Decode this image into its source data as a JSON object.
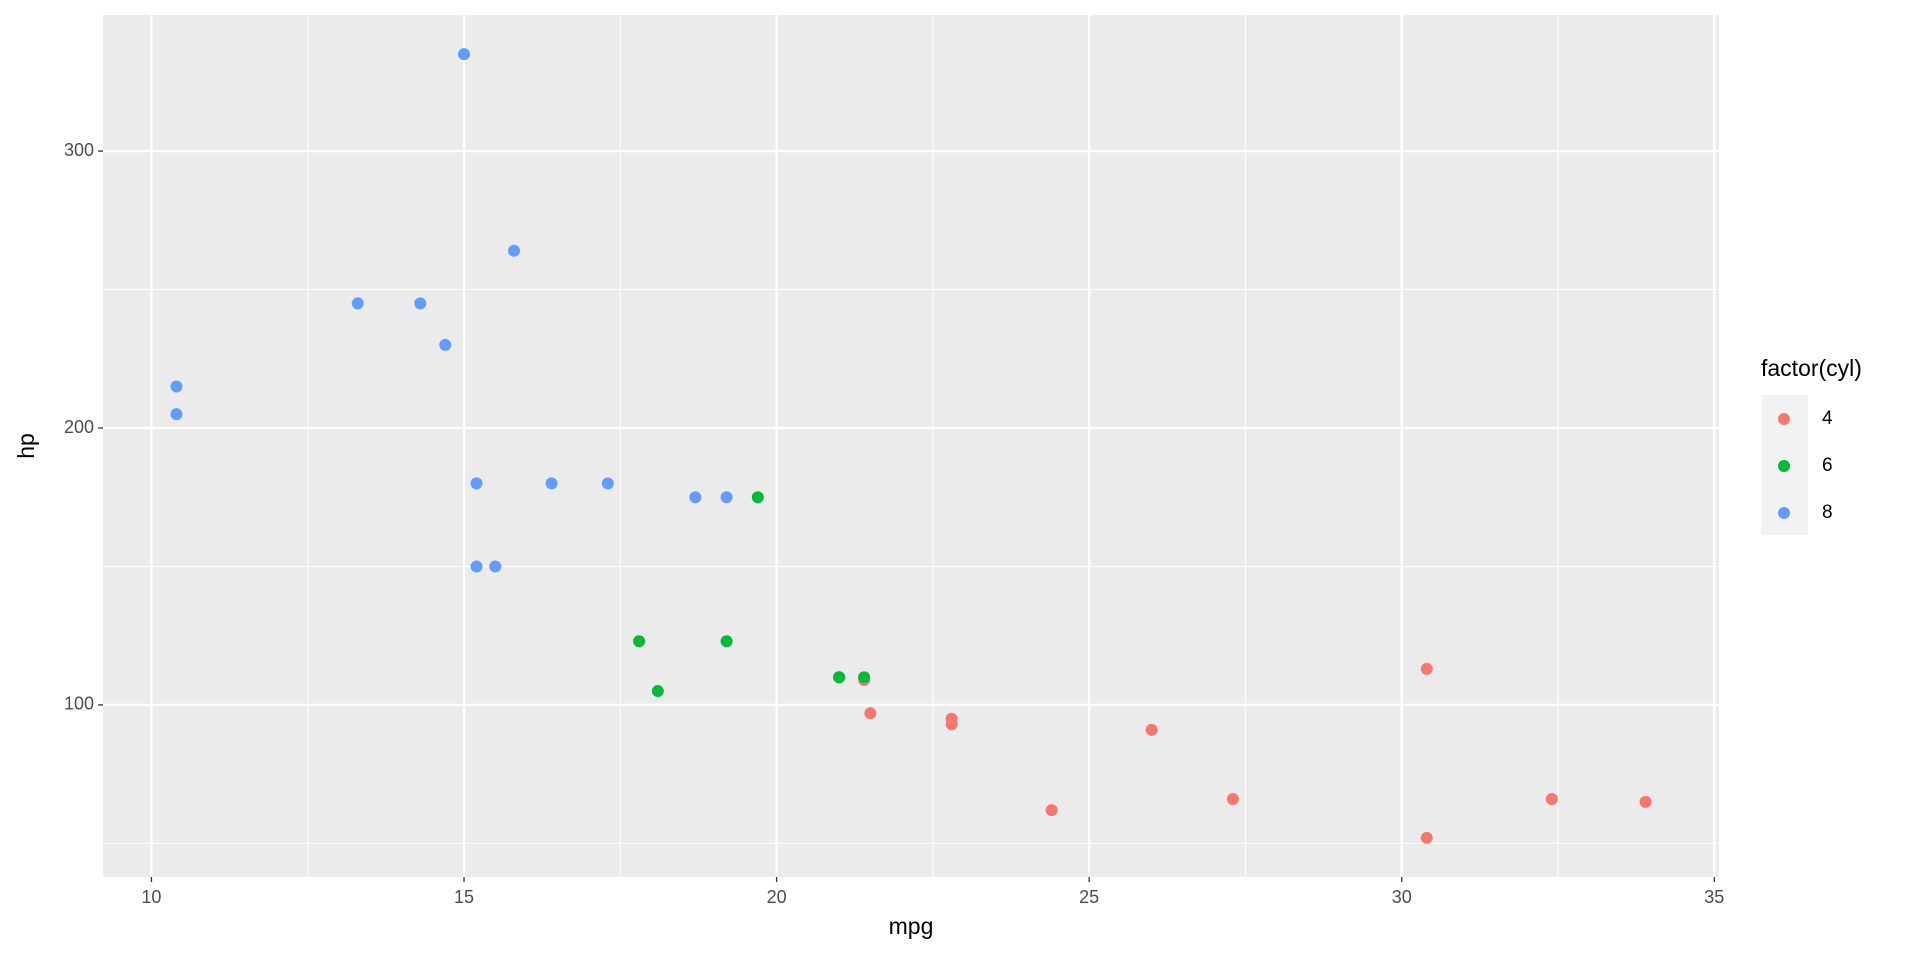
{
  "chart_data": {
    "type": "scatter",
    "x_label": "mpg",
    "y_label": "hp",
    "legend_title": "factor(cyl)",
    "legend": "right",
    "series": [
      {
        "name": "4",
        "color": "#f8766d",
        "x": [
          22.8,
          24.4,
          22.8,
          32.4,
          30.4,
          33.9,
          21.5,
          27.3,
          26.0,
          30.4,
          21.4
        ],
        "values": [
          93,
          62,
          95,
          66,
          52,
          65,
          97,
          66,
          91,
          113,
          109
        ]
      },
      {
        "name": "6",
        "color": "#00ba38",
        "x": [
          21.0,
          21.0,
          21.4,
          18.1,
          19.2,
          17.8,
          19.7
        ],
        "values": [
          110,
          110,
          110,
          105,
          123,
          123,
          175
        ]
      },
      {
        "name": "8",
        "color": "#619cff",
        "x": [
          18.7,
          14.3,
          16.4,
          17.3,
          15.2,
          10.4,
          10.4,
          14.7,
          15.5,
          15.2,
          13.3,
          19.2,
          15.8,
          15.0
        ],
        "values": [
          175,
          245,
          180,
          180,
          180,
          205,
          215,
          230,
          150,
          150,
          245,
          175,
          264,
          335
        ]
      }
    ],
    "xlim": [
      9.225,
      35.075
    ],
    "xticks": [
      10,
      15,
      20,
      25,
      30,
      35
    ],
    "ylim": [
      37.85,
      349.15
    ],
    "yticks": [
      100,
      200,
      300
    ],
    "grid": true
  }
}
